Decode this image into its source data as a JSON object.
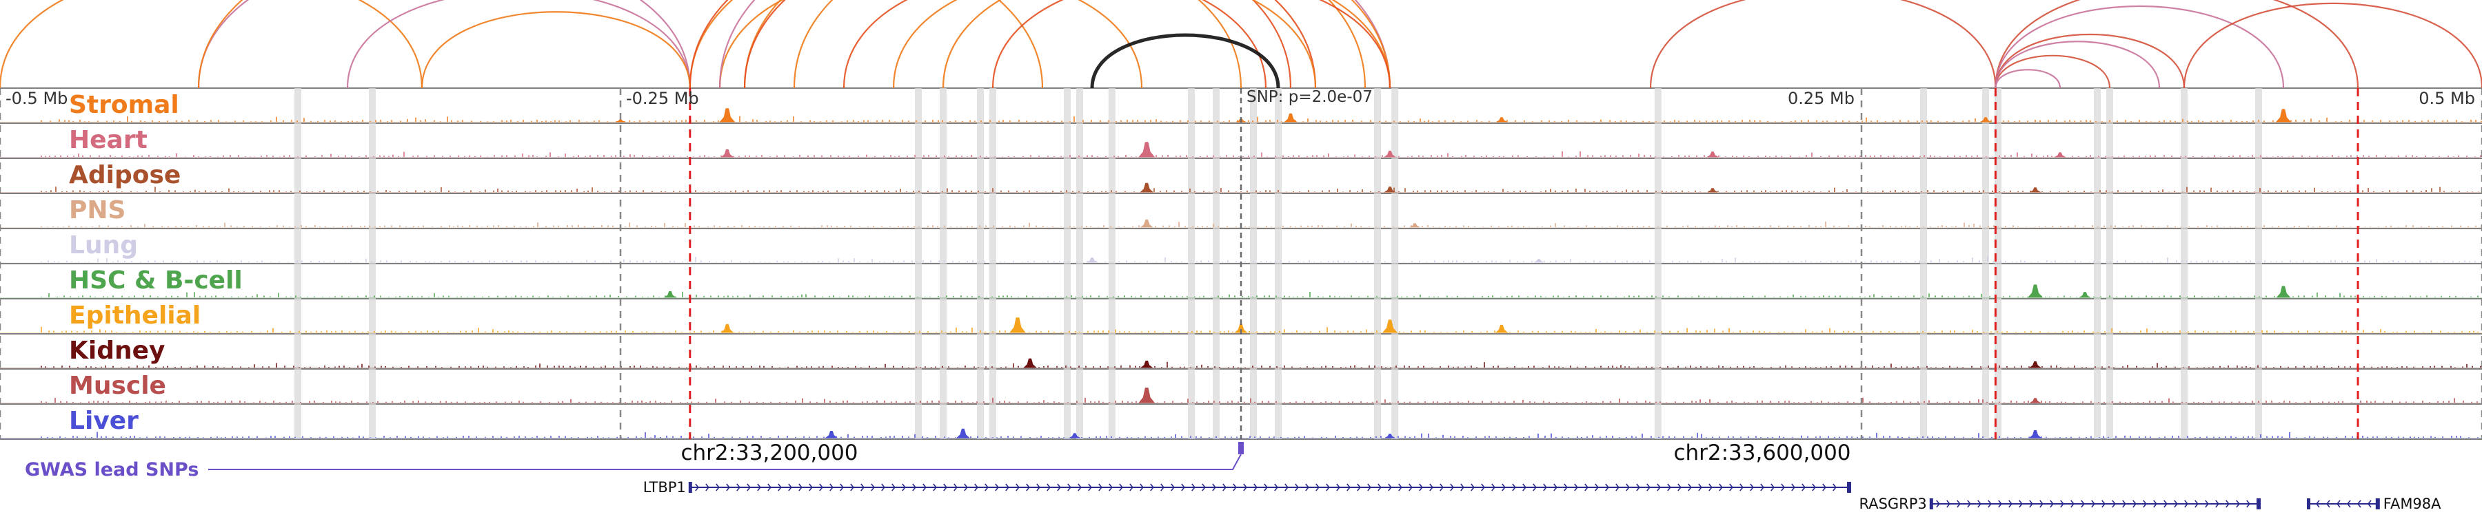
{
  "chart_data": {
    "type": "area",
    "title": "",
    "xlabel": "",
    "ylabel": "",
    "x_unit": "Mb relative to lead SNP",
    "xlim": [
      -0.5,
      0.5
    ],
    "axis_ticks": [
      {
        "value": -0.5,
        "label": "-0.5 Mb"
      },
      {
        "value": -0.25,
        "label": "-0.25 Mb"
      },
      {
        "value": 0.25,
        "label": "0.25 Mb"
      },
      {
        "value": 0.5,
        "label": "0.5 Mb"
      }
    ],
    "snp_label": "SNP: p=2.0e-07",
    "lead_snp_position": 0.0,
    "tracks": [
      {
        "name": "Stromal",
        "color": "#f07b1a",
        "peaks": [
          [
            -0.25,
            0.15
          ],
          [
            -0.207,
            0.9
          ],
          [
            0.0,
            0.2
          ],
          [
            0.02,
            0.55
          ],
          [
            0.105,
            0.3
          ],
          [
            0.3,
            0.3
          ],
          [
            0.42,
            0.85
          ]
        ]
      },
      {
        "name": "Heart",
        "color": "#d46a7e",
        "peaks": [
          [
            -0.207,
            0.5
          ],
          [
            -0.038,
            1.0
          ],
          [
            0.06,
            0.4
          ],
          [
            0.19,
            0.35
          ],
          [
            0.33,
            0.3
          ]
        ]
      },
      {
        "name": "Adipose",
        "color": "#a8512c",
        "peaks": [
          [
            -0.038,
            0.6
          ],
          [
            0.06,
            0.35
          ],
          [
            0.19,
            0.25
          ],
          [
            0.32,
            0.3
          ]
        ]
      },
      {
        "name": "PNS",
        "color": "#dba988",
        "peaks": [
          [
            -0.038,
            0.5
          ],
          [
            0.07,
            0.25
          ]
        ]
      },
      {
        "name": "Lung",
        "color": "#cfcde6",
        "peaks": [
          [
            -0.06,
            0.3
          ],
          [
            0.12,
            0.2
          ]
        ]
      },
      {
        "name": "HSC & B-cell",
        "color": "#4ea54e",
        "peaks": [
          [
            -0.23,
            0.4
          ],
          [
            0.32,
            0.85
          ],
          [
            0.34,
            0.35
          ],
          [
            0.42,
            0.75
          ]
        ]
      },
      {
        "name": "Epithelial",
        "color": "#f5a31a",
        "peaks": [
          [
            -0.207,
            0.55
          ],
          [
            -0.09,
            1.0
          ],
          [
            0.0,
            0.55
          ],
          [
            0.06,
            0.85
          ],
          [
            0.105,
            0.5
          ]
        ]
      },
      {
        "name": "Kidney",
        "color": "#6b0f0f",
        "peaks": [
          [
            -0.085,
            0.6
          ],
          [
            -0.038,
            0.45
          ],
          [
            0.32,
            0.4
          ]
        ]
      },
      {
        "name": "Muscle",
        "color": "#b84e4e",
        "peaks": [
          [
            -0.038,
            1.0
          ],
          [
            0.32,
            0.3
          ]
        ]
      },
      {
        "name": "Liver",
        "color": "#4b4fd6",
        "peaks": [
          [
            -0.165,
            0.45
          ],
          [
            -0.112,
            0.6
          ],
          [
            -0.067,
            0.3
          ],
          [
            0.06,
            0.25
          ],
          [
            0.32,
            0.5
          ]
        ]
      }
    ],
    "highlight_positions": [
      -0.38,
      -0.35,
      -0.13,
      -0.12,
      -0.105,
      -0.1,
      -0.07,
      -0.065,
      -0.052,
      -0.02,
      -0.01,
      0.005,
      0.015,
      0.055,
      0.062,
      0.168,
      0.275,
      0.3,
      0.305,
      0.345,
      0.35,
      0.38,
      0.41
    ],
    "red_dashed_positions": [
      -0.222,
      0.304,
      0.45
    ],
    "gray_dashed_positions": [
      -0.5,
      -0.25,
      0.25,
      0.5
    ],
    "loops": [
      {
        "from": -0.5,
        "to": -0.33,
        "color": "#f07b1a"
      },
      {
        "from": -0.42,
        "to": -0.222,
        "color": "#c9739a"
      },
      {
        "from": -0.36,
        "to": -0.222,
        "color": "#c9739a"
      },
      {
        "from": -0.42,
        "to": -0.08,
        "color": "#f07b1a"
      },
      {
        "from": -0.33,
        "to": -0.222,
        "color": "#f07b1a"
      },
      {
        "from": -0.222,
        "to": 0.0,
        "color": "#f07b1a"
      },
      {
        "from": -0.222,
        "to": 0.02,
        "color": "#e5501e"
      },
      {
        "from": -0.2,
        "to": 0.05,
        "color": "#f07b1a"
      },
      {
        "from": -0.2,
        "to": 0.03,
        "color": "#e5501e"
      },
      {
        "from": -0.21,
        "to": -0.04,
        "color": "#f07b1a"
      },
      {
        "from": -0.21,
        "to": 0.06,
        "color": "#c9739a"
      },
      {
        "from": -0.18,
        "to": 0.06,
        "color": "#f07b1a"
      },
      {
        "from": -0.16,
        "to": 0.01,
        "color": "#e5501e"
      },
      {
        "from": -0.14,
        "to": 0.03,
        "color": "#f07b1a"
      },
      {
        "from": -0.12,
        "to": 0.06,
        "color": "#f07b1a"
      },
      {
        "from": -0.1,
        "to": 0.06,
        "color": "#e5501e"
      },
      {
        "from": -0.06,
        "to": 0.015,
        "color": "#111111"
      },
      {
        "from": 0.165,
        "to": 0.304,
        "color": "#d4513a"
      },
      {
        "from": 0.304,
        "to": 0.45,
        "color": "#d4513a"
      },
      {
        "from": 0.304,
        "to": 0.42,
        "color": "#c9739a"
      },
      {
        "from": 0.304,
        "to": 0.38,
        "color": "#d4513a"
      },
      {
        "from": 0.304,
        "to": 0.35,
        "color": "#d4513a"
      },
      {
        "from": 0.304,
        "to": 0.33,
        "color": "#c9739a"
      },
      {
        "from": 0.304,
        "to": 0.37,
        "color": "#c9739a"
      },
      {
        "from": 0.38,
        "to": 0.5,
        "color": "#d4513a"
      }
    ],
    "gwas": {
      "label": "GWAS lead SNPs",
      "color": "#6a4fc9",
      "position": 0.0
    },
    "genomic_coordinates": [
      {
        "value": -0.19,
        "label": "chr2:33,200,000"
      },
      {
        "value": 0.21,
        "label": "chr2:33,600,000"
      }
    ],
    "genes": [
      {
        "name": "LTBP1",
        "start": -0.222,
        "end": 0.245,
        "strand": "+"
      },
      {
        "name": "RASGRP3",
        "start": 0.278,
        "end": 0.41,
        "strand": "+"
      },
      {
        "name": "FAM98A",
        "start": 0.43,
        "end": 0.458,
        "strand": "-"
      }
    ]
  }
}
